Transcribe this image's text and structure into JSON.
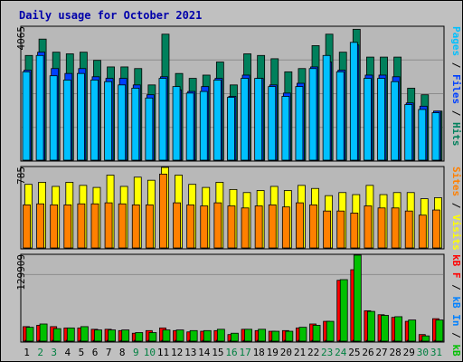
{
  "title": "Daily usage for October 2021",
  "colors": {
    "title": "#0000aa",
    "background": "#c0c0c0",
    "panel": "#b8b8b8",
    "hits": "#00805c",
    "files": "#0040ff",
    "pages": "#00c0ff",
    "visits": "#ffff00",
    "sites": "#ff8000",
    "kb_in": "#0080ff",
    "kb_out": "#00c000",
    "kb_f": "#ff0000",
    "weekday": "#000000",
    "weekend": "#008040"
  },
  "panel_maxima": {
    "top": "4065",
    "middle": "785",
    "bottom": "129909"
  },
  "side_labels": {
    "top": [
      {
        "text": "Pages",
        "color": "#00c0ff"
      },
      {
        "text": " / ",
        "color": "#000000"
      },
      {
        "text": "Files",
        "color": "#0040ff"
      },
      {
        "text": " / ",
        "color": "#000000"
      },
      {
        "text": "Hits",
        "color": "#00805c"
      }
    ],
    "middle": [
      {
        "text": "Sites",
        "color": "#ff8000"
      },
      {
        "text": " / ",
        "color": "#000000"
      },
      {
        "text": "Visits",
        "color": "#ffff00"
      }
    ],
    "bottom": [
      {
        "text": "kB F",
        "color": "#ff0000"
      },
      {
        "text": " / ",
        "color": "#000000"
      },
      {
        "text": "kB In",
        "color": "#0080ff"
      },
      {
        "text": " / ",
        "color": "#000000"
      },
      {
        "text": "kB Out",
        "color": "#00c000"
      }
    ]
  },
  "chart_data": {
    "type": "bar",
    "title": "Daily usage for October 2021",
    "categories": [
      "1",
      "2",
      "3",
      "4",
      "5",
      "6",
      "7",
      "8",
      "9",
      "10",
      "11",
      "12",
      "13",
      "14",
      "15",
      "16",
      "17",
      "18",
      "19",
      "20",
      "21",
      "22",
      "23",
      "24",
      "25",
      "26",
      "27",
      "28",
      "29",
      "30",
      "31"
    ],
    "weekend_days": [
      "2",
      "3",
      "9",
      "10",
      "16",
      "17",
      "23",
      "24",
      "30",
      "31"
    ],
    "panels": [
      {
        "name": "top",
        "ylim": [
          0,
          4065
        ],
        "series": [
          {
            "name": "Hits",
            "values": [
              3200,
              3700,
              3300,
              3250,
              3300,
              3050,
              2850,
              2850,
              2800,
              2300,
              3850,
              2650,
              2500,
              2600,
              3000,
              2300,
              3250,
              3200,
              3100,
              2700,
              2800,
              3500,
              3850,
              3300,
              4000,
              3150,
              3150,
              3150,
              2200,
              2000,
              1500
            ]
          },
          {
            "name": "Files",
            "values": [
              2750,
              3300,
              2800,
              2650,
              2800,
              2550,
              2500,
              2500,
              2300,
              2000,
              2550,
              2150,
              2100,
              2250,
              2500,
              1950,
              2600,
              2500,
              2300,
              2050,
              2350,
              2850,
              3000,
              2750,
              3520,
              2600,
              2600,
              2550,
              1750,
              1650,
              1500
            ]
          },
          {
            "name": "Pages",
            "values": [
              2700,
              3200,
              2580,
              2450,
              2650,
              2450,
              2400,
              2300,
              2200,
              1900,
              2500,
              2250,
              2050,
              2100,
              2450,
              1920,
              2500,
              2500,
              2250,
              1950,
              2250,
              2800,
              3200,
              2700,
              3600,
              2500,
              2500,
              2400,
              1700,
              1550,
              1450
            ]
          }
        ]
      },
      {
        "name": "middle",
        "ylim": [
          0,
          785
        ],
        "series": [
          {
            "name": "Visits",
            "values": [
              620,
              640,
              600,
              640,
              610,
              590,
              710,
              600,
              690,
              660,
              785,
              710,
              620,
              590,
              640,
              570,
              540,
              560,
              600,
              560,
              610,
              580,
              510,
              540,
              520,
              610,
              520,
              540,
              540,
              480,
              490
            ]
          },
          {
            "name": "Sites",
            "values": [
              420,
              430,
              420,
              420,
              430,
              430,
              440,
              430,
              420,
              420,
              720,
              440,
              420,
              410,
              440,
              410,
              390,
              410,
              420,
              400,
              440,
              420,
              360,
              360,
              340,
              410,
              390,
              390,
              360,
              320,
              370
            ]
          }
        ]
      },
      {
        "name": "bottom",
        "ylim": [
          0,
          129909
        ],
        "series": [
          {
            "name": "kB F",
            "values": [
              22000,
              24000,
              22000,
              20000,
              20000,
              18000,
              18000,
              16000,
              12000,
              16000,
              20000,
              16000,
              14000,
              15000,
              16000,
              10000,
              18000,
              16000,
              15000,
              16000,
              20000,
              26000,
              30000,
              92000,
              108000,
              46000,
              40000,
              36000,
              30000,
              10000,
              34000
            ]
          },
          {
            "name": "kB In",
            "values": [
              1000,
              1000,
              1000,
              1000,
              1000,
              1000,
              1000,
              1000,
              1000,
              1000,
              1000,
              1000,
              1000,
              1000,
              1000,
              1000,
              1000,
              1000,
              1000,
              1000,
              1000,
              1000,
              1000,
              1000,
              1000,
              1000,
              1000,
              1000,
              1000,
              1000,
              1000
            ]
          },
          {
            "name": "kB Out",
            "values": [
              21000,
              26000,
              19000,
              20000,
              22000,
              17000,
              17000,
              17000,
              13000,
              13000,
              17000,
              17000,
              16000,
              16000,
              18000,
              12000,
              18000,
              18000,
              15000,
              15000,
              21000,
              24000,
              30000,
              93000,
              130000,
              45000,
              39000,
              37000,
              32000,
              8000,
              32000
            ]
          }
        ]
      }
    ]
  }
}
